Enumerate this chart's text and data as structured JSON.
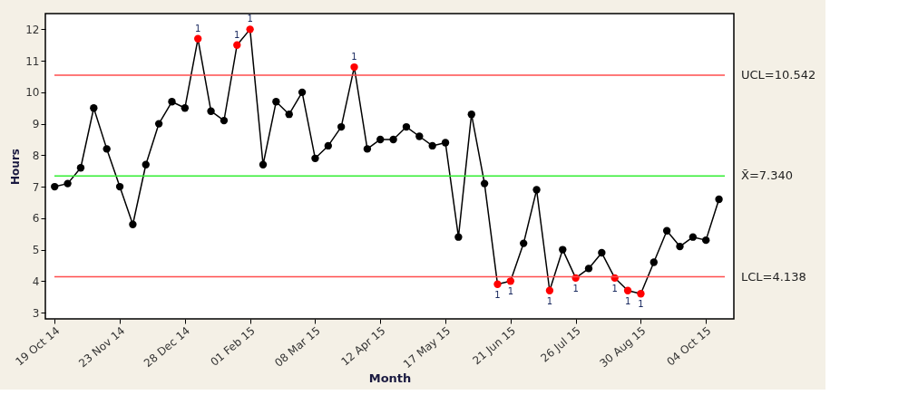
{
  "chart_data": {
    "type": "line",
    "xlabel": "Month",
    "ylabel": "Hours",
    "x": [
      "2014-10-19",
      "2014-10-26",
      "2014-11-02",
      "2014-11-09",
      "2014-11-16",
      "2014-11-23",
      "2014-11-30",
      "2014-12-07",
      "2014-12-14",
      "2014-12-21",
      "2014-12-28",
      "2015-01-04",
      "2015-01-11",
      "2015-01-18",
      "2015-01-25",
      "2015-02-01",
      "2015-02-08",
      "2015-02-15",
      "2015-02-22",
      "2015-03-01",
      "2015-03-08",
      "2015-03-15",
      "2015-03-22",
      "2015-03-29",
      "2015-04-05",
      "2015-04-12",
      "2015-04-19",
      "2015-04-26",
      "2015-05-03",
      "2015-05-10",
      "2015-05-17",
      "2015-05-24",
      "2015-05-31",
      "2015-06-07",
      "2015-06-14",
      "2015-06-21",
      "2015-06-28",
      "2015-07-05",
      "2015-07-12",
      "2015-07-19",
      "2015-07-26",
      "2015-08-02",
      "2015-08-09",
      "2015-08-16",
      "2015-08-23",
      "2015-08-30",
      "2015-09-06",
      "2015-09-13",
      "2015-09-20",
      "2015-09-27",
      "2015-10-04",
      "2015-10-11"
    ],
    "series": [
      {
        "color": "#000000",
        "values": [
          7.0,
          7.1,
          7.6,
          9.5,
          8.2,
          7.0,
          5.8,
          7.7,
          9.0,
          9.7,
          9.5,
          11.7,
          9.4,
          9.1,
          11.5,
          12.0,
          7.7,
          9.7,
          9.3,
          10.0,
          7.9,
          8.3,
          8.9,
          10.8,
          8.2,
          8.5,
          8.5,
          8.9,
          8.6,
          8.3,
          8.4,
          5.4,
          9.3,
          7.1,
          3.9,
          4.0,
          5.2,
          6.9,
          3.7,
          5.0,
          4.1,
          4.4,
          4.9,
          4.1,
          3.7,
          3.6,
          4.6,
          5.6,
          5.1,
          5.4,
          5.3,
          6.6
        ],
        "colors": [
          "#000000",
          "#000000",
          "#000000",
          "#000000",
          "#000000",
          "#000000",
          "#000000",
          "#000000",
          "#000000",
          "#000000",
          "#000000",
          "#ff0000",
          "#000000",
          "#000000",
          "#ff0000",
          "#ff0000",
          "#000000",
          "#000000",
          "#000000",
          "#000000",
          "#000000",
          "#000000",
          "#000000",
          "#ff0000",
          "#000000",
          "#000000",
          "#000000",
          "#000000",
          "#000000",
          "#000000",
          "#000000",
          "#000000",
          "#000000",
          "#000000",
          "#ff0000",
          "#ff0000",
          "#000000",
          "#000000",
          "#ff0000",
          "#000000",
          "#ff0000",
          "#000000",
          "#000000",
          "#ff0000",
          "#ff0000",
          "#ff0000",
          "#000000",
          "#000000",
          "#000000",
          "#000000",
          "#000000",
          "#000000"
        ]
      }
    ],
    "marker": "circle",
    "line_style": "solid",
    "xlim": [
      "2014-10-14",
      "2015-10-19"
    ],
    "ylim": [
      2.8,
      12.5
    ],
    "xticks": [
      {
        "value": "2014-10-19",
        "label": "19 Oct 14"
      },
      {
        "value": "2014-11-23",
        "label": "23 Nov 14"
      },
      {
        "value": "2014-12-28",
        "label": "28 Dec 14"
      },
      {
        "value": "2015-02-01",
        "label": "01 Feb 15"
      },
      {
        "value": "2015-03-08",
        "label": "08 Mar 15"
      },
      {
        "value": "2015-04-12",
        "label": "12 Apr 15"
      },
      {
        "value": "2015-05-17",
        "label": "17 May 15"
      },
      {
        "value": "2015-06-21",
        "label": "21 Jun 15"
      },
      {
        "value": "2015-07-26",
        "label": "26 Jul 15"
      },
      {
        "value": "2015-08-30",
        "label": "30 Aug 15"
      },
      {
        "value": "2015-10-04",
        "label": "04 Oct 15"
      }
    ],
    "yticks": [
      3,
      4,
      5,
      6,
      7,
      8,
      9,
      10,
      11,
      12
    ],
    "ref_lines": [
      {
        "axis": "y",
        "value": 10.542,
        "label": "UCL=10.542",
        "color": "#ff4d4d"
      },
      {
        "axis": "y",
        "value": 7.34,
        "label": "X̄=7.340",
        "color": "#33ee33"
      },
      {
        "axis": "y",
        "value": 4.138,
        "label": "LCL=4.138",
        "color": "#ff4d4d"
      }
    ],
    "annotations": [
      {
        "text": "1",
        "x": "2015-01-04",
        "y": 11.7
      },
      {
        "text": "1",
        "x": "2015-01-25",
        "y": 11.5
      },
      {
        "text": "1",
        "x": "2015-02-01",
        "y": 12.0
      },
      {
        "text": "1",
        "x": "2015-03-29",
        "y": 10.8
      },
      {
        "text": "1",
        "x": "2015-06-14",
        "y": 3.9
      },
      {
        "text": "1",
        "x": "2015-06-21",
        "y": 4.0
      },
      {
        "text": "1",
        "x": "2015-07-12",
        "y": 3.7
      },
      {
        "text": "1",
        "x": "2015-07-26",
        "y": 4.1
      },
      {
        "text": "1",
        "x": "2015-08-16",
        "y": 4.1
      },
      {
        "text": "1",
        "x": "2015-08-23",
        "y": 3.7
      },
      {
        "text": "1",
        "x": "2015-08-30",
        "y": 3.6
      }
    ]
  }
}
